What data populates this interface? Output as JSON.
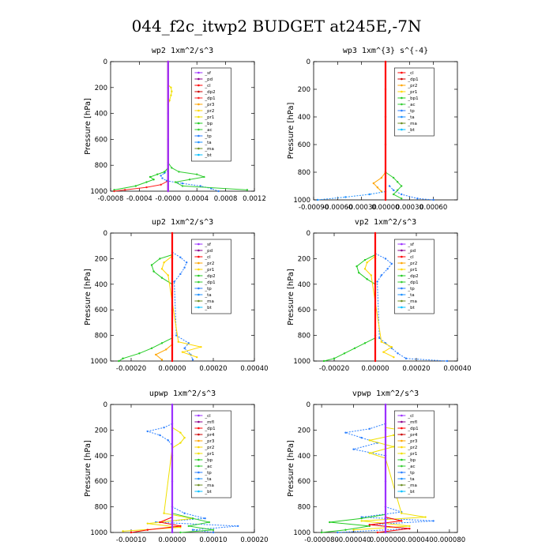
{
  "figure": {
    "title": "044_f2c_itwp2  BUDGET at245E,-7N"
  },
  "chart_data": [
    {
      "type": "line",
      "title": "wp2   1xm^2/s^3",
      "ylabel": "Pressure [hPa]",
      "xlim": [
        -0.0008,
        0.0012
      ],
      "ylim": [
        1000,
        0
      ],
      "x_ticks": [
        "-0.0008",
        "-0.0004",
        "-0.0000",
        "0.0004",
        "0.0008",
        "0.0012"
      ],
      "x_tick_values": [
        -0.0008,
        -0.0004,
        0,
        0.0004,
        0.0008,
        0.0012
      ],
      "y_ticks": [
        "0",
        "200",
        "400",
        "600",
        "800",
        "1000"
      ],
      "legend": [
        "_sf",
        "_pd",
        "_cl",
        "_dp2",
        "_dp1",
        "_pr3",
        "_pr2",
        "_pr1",
        "_bp",
        "_ac",
        "_tp",
        "_ta",
        "_ma",
        "_bt"
      ],
      "colors": [
        "#9b30ff",
        "#8b008b",
        "#ff0000",
        "#cc0000",
        "#ff2020",
        "#ffa500",
        "#ffd700",
        "#f0e000",
        "#22cc22",
        "#32cd32",
        "#2a7fff",
        "#1e90ff",
        "#6b8e23",
        "#00bfff"
      ],
      "series": [
        {
          "name": "_tp",
          "p": [
            840,
            860,
            880,
            900,
            920,
            940,
            960,
            980,
            1000
          ],
          "x": [
            0,
            -5e-05,
            -0.0001,
            -8e-05,
            -2e-05,
            0.0002,
            0.00045,
            0.0006,
            0.0007
          ]
        },
        {
          "name": "_ac",
          "p": [
            780,
            820,
            850,
            870,
            890,
            910,
            930,
            960,
            990
          ],
          "x": [
            0,
            5e-05,
            0.00015,
            0.0004,
            0.0005,
            0.0003,
            0.0001,
            0.0002,
            0.0011
          ]
        },
        {
          "name": "_bp",
          "p": [
            820,
            850,
            870,
            890,
            910,
            930,
            960,
            990
          ],
          "x": [
            0,
            -5e-05,
            -0.00015,
            -0.00025,
            -0.0002,
            -0.0003,
            -0.00045,
            -0.00075
          ]
        },
        {
          "name": "_pr1",
          "p": [
            180,
            200,
            230,
            260,
            300,
            330
          ],
          "x": [
            0,
            4e-05,
            5e-05,
            4e-05,
            2e-05,
            0
          ]
        },
        {
          "name": "_dp1",
          "p": [
            920,
            950,
            970,
            990,
            1000
          ],
          "x": [
            0,
            -0.0001,
            -0.0003,
            -0.0006,
            -0.00075
          ]
        },
        {
          "name": "_cl",
          "p": [
            0,
            200,
            400,
            600,
            800,
            1000
          ],
          "x": [
            0,
            0,
            0,
            0,
            0,
            0
          ]
        },
        {
          "name": "_sf",
          "p": [
            0,
            200,
            400,
            600,
            800,
            1000
          ],
          "x": [
            0,
            0,
            0,
            0,
            0,
            0
          ]
        }
      ]
    },
    {
      "type": "line",
      "title": "wp3   1xm^{3} s^{-4}",
      "ylabel": "Pressure [hPa]",
      "xlim": [
        -0.0009,
        0.0009
      ],
      "ylim": [
        1000,
        0
      ],
      "x_ticks": [
        "-0.00090",
        "-0.00060",
        "-0.00030",
        "0.00000",
        "0.00030",
        "0.00060"
      ],
      "x_tick_values": [
        -0.0009,
        -0.0006,
        -0.0003,
        0,
        0.0003,
        0.0006
      ],
      "y_ticks": [
        "0",
        "200",
        "400",
        "600",
        "800",
        "1000"
      ],
      "legend": [
        "_cl",
        "_dp1",
        "_pr2",
        "_pr1",
        "_bp1",
        "_ac",
        "_tp",
        "_ta",
        "_ma",
        "_bt"
      ],
      "colors": [
        "#ff0000",
        "#cc0000",
        "#ffa500",
        "#ffd700",
        "#22cc22",
        "#32cd32",
        "#2a7fff",
        "#1e90ff",
        "#6b8e23",
        "#00bfff"
      ],
      "series": [
        {
          "name": "_tp",
          "p": [
            900,
            930,
            960,
            990,
            1000
          ],
          "x": [
            5e-05,
            0.0001,
            0.0002,
            0.0004,
            0.0006
          ]
        },
        {
          "name": "_ac",
          "p": [
            800,
            840,
            870,
            900,
            930,
            960,
            990
          ],
          "x": [
            0,
            0.0001,
            0.00015,
            0.0002,
            0.00015,
            0.0001,
            0.0002
          ]
        },
        {
          "name": "_pr2",
          "p": [
            800,
            840,
            880,
            910,
            940
          ],
          "x": [
            0,
            -5e-05,
            -0.00015,
            -0.0001,
            -5e-05
          ]
        },
        {
          "name": "_ta",
          "p": [
            940,
            960,
            980,
            1000
          ],
          "x": [
            0,
            -0.0002,
            -0.0005,
            -0.00085
          ]
        },
        {
          "name": "_cl",
          "p": [
            0,
            200,
            400,
            600,
            800,
            1000
          ],
          "x": [
            0,
            0,
            0,
            0,
            0,
            0
          ]
        }
      ]
    },
    {
      "type": "line",
      "title": "up2   1xm^2/s^3",
      "ylabel": "Pressure [hPa]",
      "xlim": [
        -0.0003,
        0.0004
      ],
      "ylim": [
        1000,
        0
      ],
      "x_ticks": [
        "-0.00020",
        "0.00000",
        "0.00020",
        "0.00040"
      ],
      "x_tick_values": [
        -0.0002,
        0,
        0.0002,
        0.0004
      ],
      "y_ticks": [
        "0",
        "200",
        "400",
        "600",
        "800",
        "1000"
      ],
      "legend": [
        "_sf",
        "_pd",
        "_cl",
        "_pr2",
        "_pr1",
        "_dp2",
        "_dp1",
        "_tp",
        "_ta",
        "_ma",
        "_bt"
      ],
      "colors": [
        "#9b30ff",
        "#8b008b",
        "#ff0000",
        "#ffa500",
        "#ffd700",
        "#22cc22",
        "#32cd32",
        "#2a7fff",
        "#1e90ff",
        "#6b8e23",
        "#00bfff"
      ],
      "series": [
        {
          "name": "_tp",
          "p": [
            150,
            190,
            230,
            270,
            320,
            380,
            800,
            860,
            900,
            950,
            990
          ],
          "x": [
            0,
            4e-05,
            7e-05,
            6e-05,
            4e-05,
            1e-05,
            2e-05,
            8e-05,
            6e-05,
            9e-05,
            0.0001
          ]
        },
        {
          "name": "_dp2",
          "p": [
            170,
            200,
            250,
            300,
            350,
            400,
            820,
            860,
            900,
            940,
            980,
            1000
          ],
          "x": [
            0,
            -6e-05,
            -0.0001,
            -9e-05,
            -5e-05,
            0,
            0,
            -5e-05,
            -0.0001,
            -0.00016,
            -0.00024,
            -0.00026
          ]
        },
        {
          "name": "_pr1",
          "p": [
            180,
            230,
            280,
            330,
            850,
            890,
            930,
            970
          ],
          "x": [
            0,
            -4e-05,
            -5e-05,
            -2e-05,
            3e-05,
            0.00014,
            5e-05,
            0.00012
          ]
        },
        {
          "name": "_pr2",
          "p": [
            870,
            910,
            950,
            990
          ],
          "x": [
            0,
            -3e-05,
            -8e-05,
            -5e-05
          ]
        },
        {
          "name": "_cl",
          "p": [
            0,
            200,
            400,
            600,
            800,
            1000
          ],
          "x": [
            0,
            0,
            0,
            0,
            0,
            0
          ]
        }
      ]
    },
    {
      "type": "line",
      "title": "vp2   1xm^2/s^3",
      "ylabel": "Pressure [hPa]",
      "xlim": [
        -0.0003,
        0.0004
      ],
      "ylim": [
        1000,
        0
      ],
      "x_ticks": [
        "-0.00020",
        "0.00000",
        "0.00020",
        "0.00040"
      ],
      "x_tick_values": [
        -0.0002,
        0,
        0.0002,
        0.0004
      ],
      "y_ticks": [
        "0",
        "200",
        "400",
        "600",
        "800",
        "1000"
      ],
      "legend": [
        "_sf",
        "_pd",
        "_cl",
        "_pr2",
        "_pr1",
        "_dp2",
        "_dp1",
        "_tp",
        "_ta",
        "_ma",
        "_bt"
      ],
      "colors": [
        "#9b30ff",
        "#8b008b",
        "#ff0000",
        "#ffa500",
        "#ffd700",
        "#22cc22",
        "#32cd32",
        "#2a7fff",
        "#1e90ff",
        "#6b8e23",
        "#00bfff"
      ],
      "series": [
        {
          "name": "_tp",
          "p": [
            160,
            200,
            240,
            280,
            330,
            380,
            820,
            860,
            900,
            940,
            980,
            1000
          ],
          "x": [
            0,
            5e-05,
            8e-05,
            6e-05,
            3e-05,
            1e-05,
            2e-05,
            5e-05,
            8e-05,
            0.00011,
            0.00015,
            0.00035
          ]
        },
        {
          "name": "_dp2",
          "p": [
            170,
            210,
            260,
            310,
            360,
            400,
            820,
            860,
            900,
            940,
            980,
            1000
          ],
          "x": [
            0,
            -5e-05,
            -9e-05,
            -8e-05,
            -4e-05,
            0,
            0,
            -5e-05,
            -0.0001,
            -0.00015,
            -0.0002,
            -0.00025
          ]
        },
        {
          "name": "_pr1",
          "p": [
            180,
            230,
            280,
            330,
            850,
            890,
            930,
            970
          ],
          "x": [
            0,
            -4e-05,
            -5e-05,
            -2e-05,
            3e-05,
            8e-05,
            4e-05,
            9e-05
          ]
        },
        {
          "name": "_cl",
          "p": [
            0,
            200,
            400,
            600,
            800,
            1000
          ],
          "x": [
            0,
            0,
            0,
            0,
            0,
            0
          ]
        }
      ]
    },
    {
      "type": "line",
      "title": "upwp   1xm^2/s^3",
      "ylabel": "Pressure [hPa]",
      "xlim": [
        -0.00015,
        0.0002
      ],
      "ylim": [
        1000,
        0
      ],
      "x_ticks": [
        "-0.00010",
        "0.00000",
        "0.00010",
        "0.00020"
      ],
      "x_tick_values": [
        -0.0001,
        0,
        0.0001,
        0.0002
      ],
      "y_ticks": [
        "0",
        "200",
        "400",
        "600",
        "800",
        "1000"
      ],
      "legend": [
        "_cl",
        "_mfl",
        "_dp1",
        "_pr4",
        "_pr3",
        "_pr2",
        "_pr1",
        "_bp",
        "_ac",
        "_tp",
        "_ta",
        "_ma",
        "_bt"
      ],
      "colors": [
        "#9b30ff",
        "#8b008b",
        "#ff0000",
        "#cc0000",
        "#ffa500",
        "#ffd700",
        "#f0e000",
        "#22cc22",
        "#32cd32",
        "#2a7fff",
        "#1e90ff",
        "#6b8e23",
        "#00bfff"
      ],
      "series": [
        {
          "name": "_tp",
          "p": [
            150,
            180,
            210,
            240,
            280,
            320,
            800,
            850,
            890,
            920,
            950,
            980,
            1000
          ],
          "x": [
            0,
            -2e-05,
            -6e-05,
            -3e-05,
            -1e-05,
            0,
            0,
            3e-05,
            8e-05,
            -4e-05,
            0.00016,
            5e-05,
            0.0001
          ]
        },
        {
          "name": "_pr1",
          "p": [
            180,
            220,
            260,
            300,
            340,
            850,
            890,
            930,
            960,
            990
          ],
          "x": [
            0,
            2e-05,
            3e-05,
            2e-05,
            0,
            -2e-05,
            5e-05,
            -6e-05,
            2e-05,
            -0.00012
          ]
        },
        {
          "name": "_ac",
          "p": [
            850,
            890,
            920,
            950,
            980,
            1000
          ],
          "x": [
            0,
            5e-05,
            9e-05,
            4e-05,
            0.0001,
            2e-05
          ]
        },
        {
          "name": "_dp1",
          "p": [
            880,
            920,
            950,
            980,
            1000
          ],
          "x": [
            0,
            -3e-05,
            2e-05,
            -6e-05,
            -0.0001
          ]
        },
        {
          "name": "_cl",
          "p": [
            0,
            200,
            400,
            600,
            800,
            1000
          ],
          "x": [
            0,
            0,
            0,
            0,
            0,
            0
          ]
        }
      ]
    },
    {
      "type": "line",
      "title": "vpwp   1xm^2/s^3",
      "ylabel": "Pressure [hPa]",
      "xlim": [
        -9e-05,
        9e-05
      ],
      "ylim": [
        1000,
        0
      ],
      "x_ticks": [
        "-0.000080",
        "-0.000040",
        "0.000000",
        "0.000040",
        "0.000080"
      ],
      "x_tick_values": [
        -8e-05,
        -4e-05,
        0,
        4e-05,
        8e-05
      ],
      "y_ticks": [
        "0",
        "200",
        "400",
        "600",
        "800",
        "1000"
      ],
      "legend": [
        "_cl",
        "_mfl",
        "_dp1",
        "_pr4",
        "_pr3",
        "_pr2",
        "_pr1",
        "_bp",
        "_ac",
        "_tp",
        "_ta",
        "_ma",
        "_bt"
      ],
      "colors": [
        "#9b30ff",
        "#8b008b",
        "#ff0000",
        "#cc0000",
        "#ffa500",
        "#ffd700",
        "#f0e000",
        "#22cc22",
        "#32cd32",
        "#2a7fff",
        "#1e90ff",
        "#6b8e23",
        "#00bfff"
      ],
      "series": [
        {
          "name": "_tp",
          "p": [
            150,
            190,
            220,
            260,
            300,
            350,
            400,
            800,
            840,
            880,
            910,
            940,
            970,
            1000
          ],
          "x": [
            0,
            -2e-05,
            -5e-05,
            -3e-05,
            -1e-05,
            -4e-05,
            0,
            0,
            2e-05,
            -3e-05,
            6e-05,
            -2e-05,
            3e-05,
            -6e-05
          ]
        },
        {
          "name": "_pr1",
          "p": [
            180,
            210,
            240,
            280,
            330,
            380,
            420,
            850,
            880,
            910,
            950,
            980
          ],
          "x": [
            0,
            3e-05,
            1e-05,
            -2e-05,
            1e-05,
            -2e-05,
            0,
            2e-05,
            5e-05,
            -3e-05,
            3e-05,
            -4e-05
          ]
        },
        {
          "name": "_bp",
          "p": [
            860,
            890,
            920,
            950,
            980,
            1000
          ],
          "x": [
            0,
            -3e-05,
            -7e-05,
            -2e-05,
            -5e-05,
            -8e-05
          ]
        },
        {
          "name": "_dp1",
          "p": [
            880,
            910,
            940,
            970,
            1000
          ],
          "x": [
            0,
            2e-05,
            -2e-05,
            3e-05,
            -1e-05
          ]
        },
        {
          "name": "_cl",
          "p": [
            0,
            200,
            400,
            600,
            800,
            1000
          ],
          "x": [
            0,
            0,
            0,
            0,
            0,
            0
          ]
        }
      ]
    }
  ]
}
